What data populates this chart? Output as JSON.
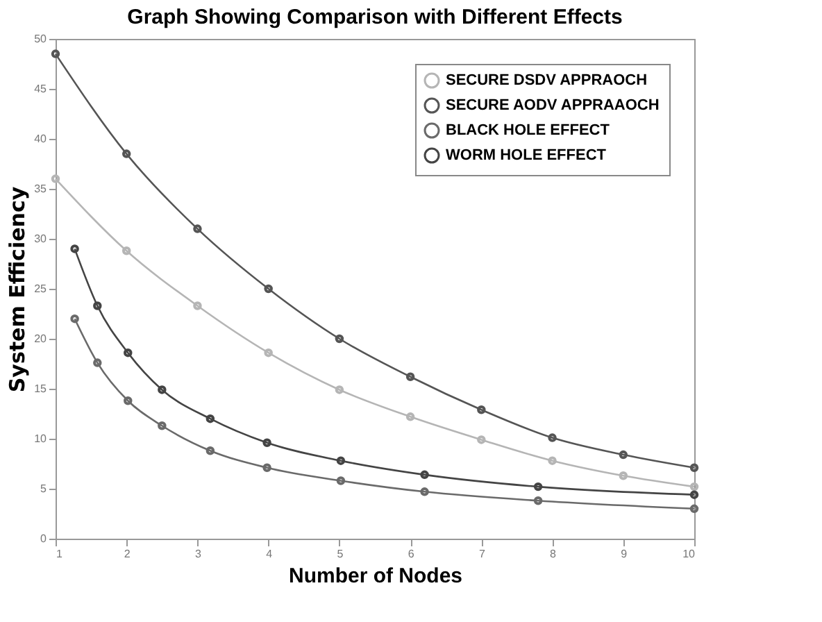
{
  "chart_data": {
    "type": "line",
    "title": "Graph Showing Comparison with Different Effects",
    "xlabel": "Number of Nodes",
    "ylabel": "System Efficiency",
    "xlim": [
      1,
      10
    ],
    "ylim": [
      0,
      50
    ],
    "xticks": [
      1,
      2,
      3,
      4,
      5,
      6,
      7,
      8,
      9,
      10
    ],
    "yticks": [
      0,
      5,
      10,
      15,
      20,
      25,
      30,
      35,
      40,
      45,
      50
    ],
    "legend": "top right",
    "marker": "circle",
    "series": [
      {
        "name": "SECURE DSDV APPRAOCH",
        "color": "#b5b5b5",
        "x": [
          1,
          2,
          3,
          4,
          5,
          6,
          7,
          8,
          9,
          10
        ],
        "values": [
          36,
          28.8,
          23.3,
          18.6,
          14.9,
          12.2,
          9.9,
          7.8,
          6.3,
          5.2
        ]
      },
      {
        "name": "SECURE AODV APPRAAOCH",
        "color": "#555555",
        "x": [
          1,
          2,
          3,
          4,
          5,
          6,
          7,
          8,
          9,
          10
        ],
        "values": [
          48.5,
          38.5,
          31,
          25,
          20,
          16.2,
          12.9,
          10.1,
          8.4,
          7.1
        ]
      },
      {
        "name": "BLACK HOLE EFFECT",
        "color": "#6a6a6a",
        "x": [
          1.27,
          1.59,
          2.02,
          2.5,
          3.18,
          3.98,
          5.02,
          6.2,
          7.8,
          10
        ],
        "values": [
          22,
          17.6,
          13.8,
          11.3,
          8.8,
          7.1,
          5.8,
          4.7,
          3.8,
          3
        ]
      },
      {
        "name": "WORM HOLE EFFECT",
        "color": "#444444",
        "x": [
          1.27,
          1.59,
          2.02,
          2.5,
          3.18,
          3.98,
          5.02,
          6.2,
          7.8,
          10
        ],
        "values": [
          29,
          23.3,
          18.6,
          14.9,
          12,
          9.6,
          7.8,
          6.4,
          5.2,
          4.4
        ]
      }
    ]
  }
}
